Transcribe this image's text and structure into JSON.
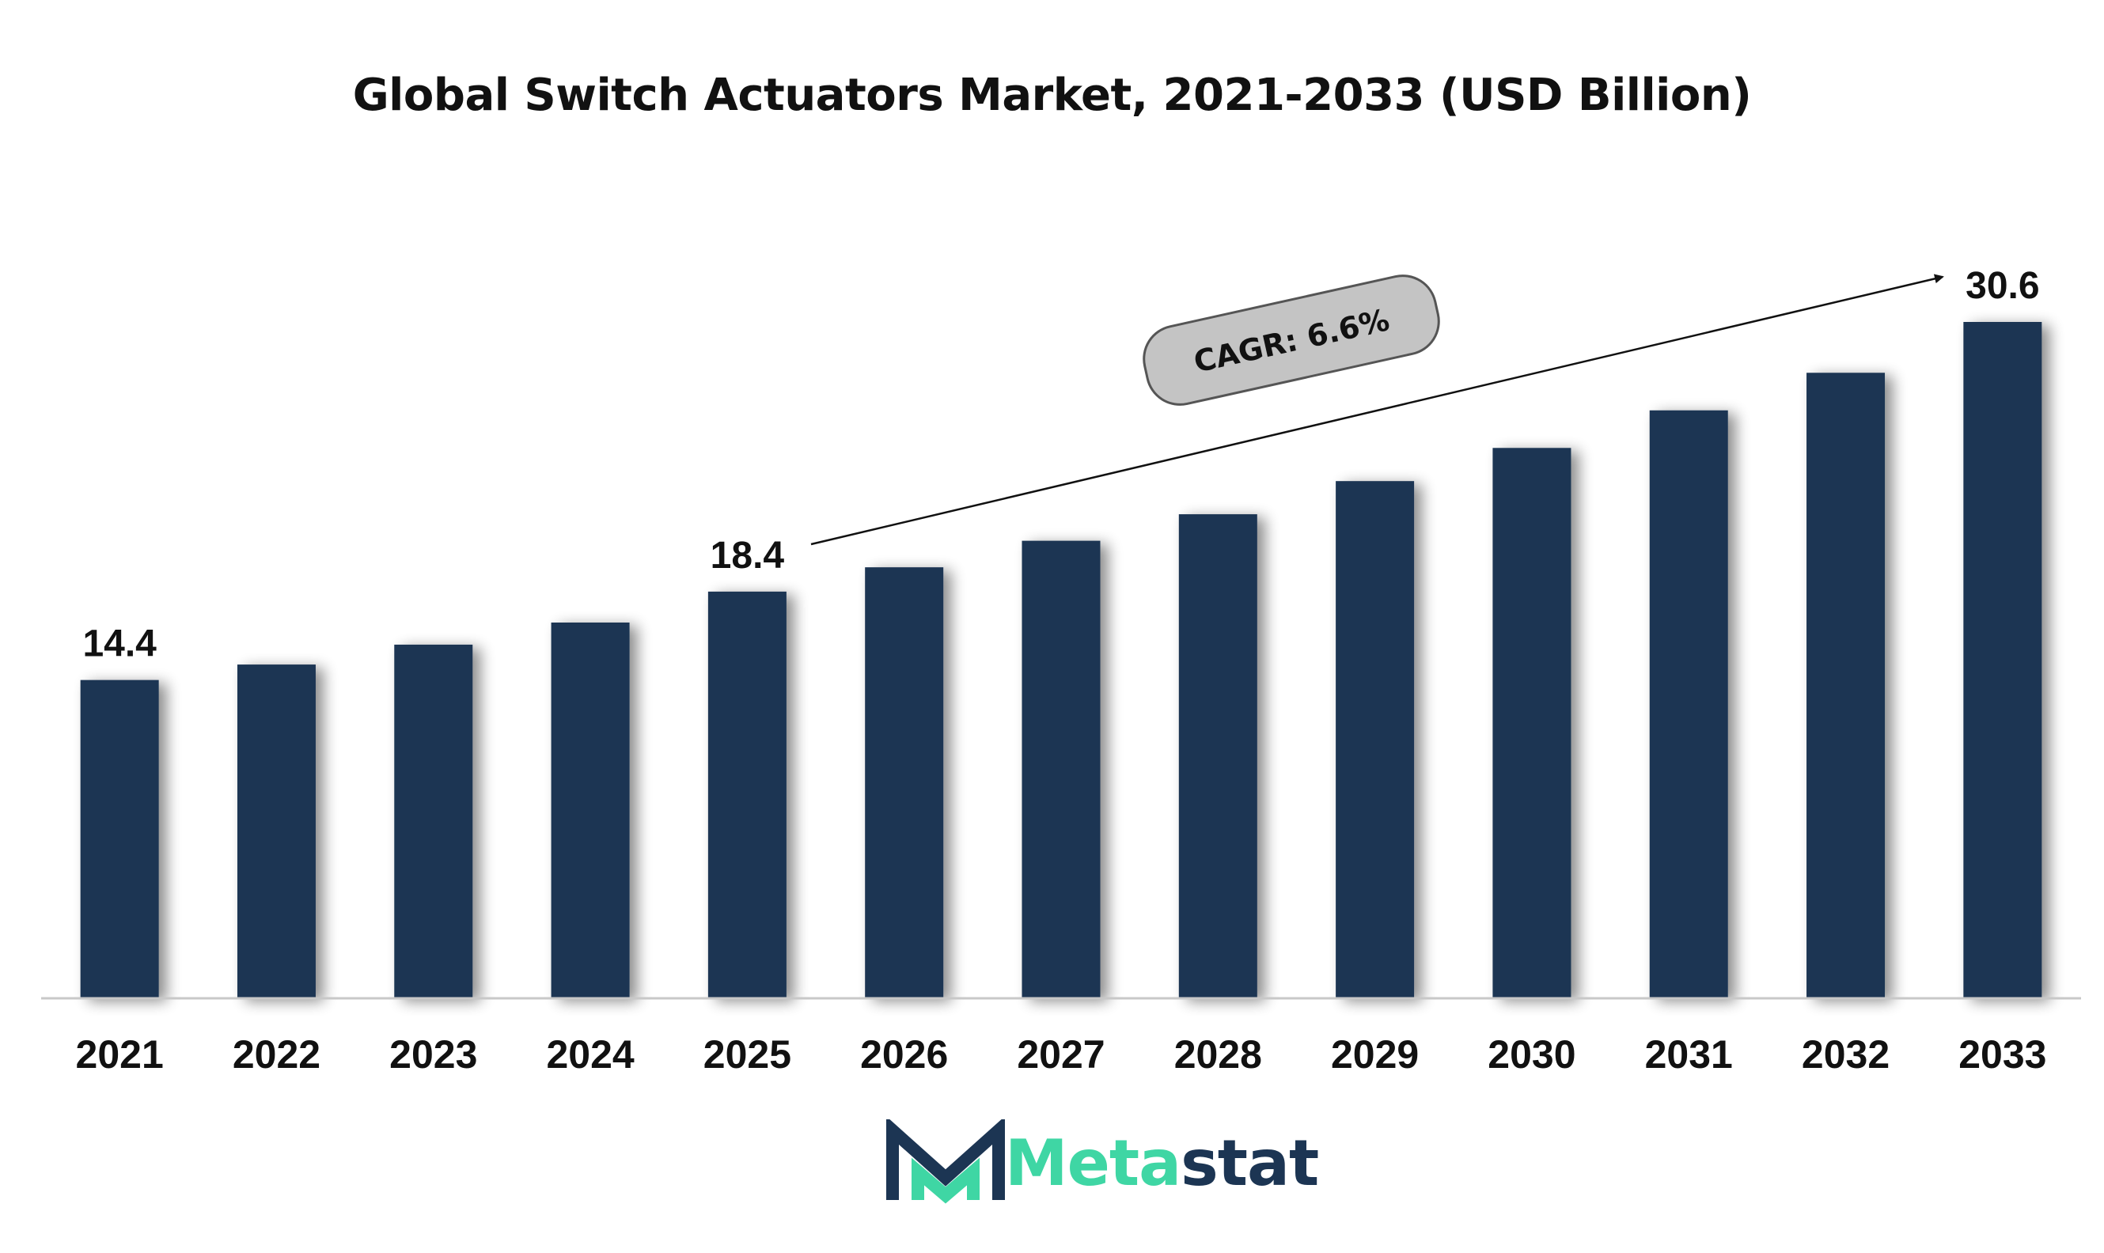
{
  "chart_data": {
    "type": "bar",
    "title": "Global Switch Actuators Market, 2021-2033 (USD Billion)",
    "xlabel": "",
    "ylabel": "",
    "categories": [
      "2021",
      "2022",
      "2023",
      "2024",
      "2025",
      "2026",
      "2027",
      "2028",
      "2029",
      "2030",
      "2031",
      "2032",
      "2033"
    ],
    "values": [
      14.4,
      15.1,
      16.0,
      17.0,
      18.4,
      19.5,
      20.7,
      21.9,
      23.4,
      24.9,
      26.6,
      28.3,
      30.6
    ],
    "value_labels": [
      {
        "category": "2021",
        "text": "14.4"
      },
      {
        "category": "2025",
        "text": "18.4"
      },
      {
        "category": "2033",
        "text": "30.6"
      }
    ],
    "ylim": [
      0,
      32
    ],
    "grid": false,
    "annotation": "CAGR: 6.6%"
  },
  "colors": {
    "bar": "#1c3553",
    "axis": "#c8c8c8",
    "badge_fill": "#c4c4c4",
    "badge_stroke": "#555555",
    "logo_accent": "#3fd6a4",
    "logo_dark": "#1c3553"
  },
  "logo": {
    "icon": "metastat-m-icon",
    "text_meta": "Meta",
    "text_stat": "stat"
  }
}
